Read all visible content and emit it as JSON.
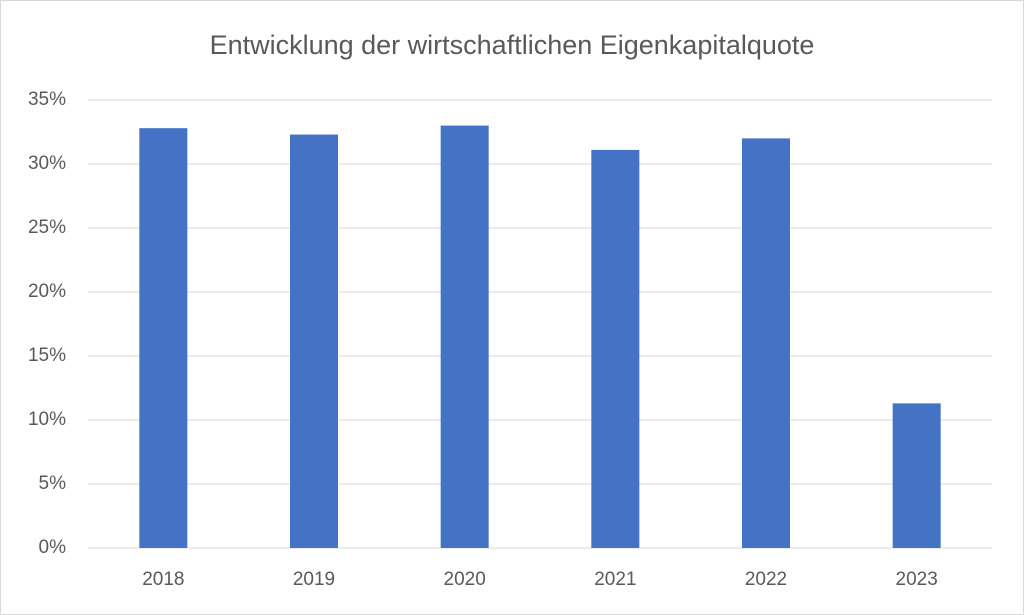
{
  "chart_data": {
    "type": "bar",
    "title": "Entwicklung der wirtschaftlichen Eigenkapitalquote",
    "categories": [
      "2018",
      "2019",
      "2020",
      "2021",
      "2022",
      "2023"
    ],
    "values": [
      32.8,
      32.3,
      33.0,
      31.1,
      32.0,
      11.3
    ],
    "color": "#4472c4",
    "ylim": [
      0,
      35
    ],
    "yticks": [
      {
        "value": 0,
        "label": "0%"
      },
      {
        "value": 5,
        "label": "5%"
      },
      {
        "value": 10,
        "label": "10%"
      },
      {
        "value": 15,
        "label": "15%"
      },
      {
        "value": 20,
        "label": "20%"
      },
      {
        "value": 25,
        "label": "25%"
      },
      {
        "value": 30,
        "label": "30%"
      },
      {
        "value": 35,
        "label": "35%"
      }
    ],
    "grid": true
  }
}
